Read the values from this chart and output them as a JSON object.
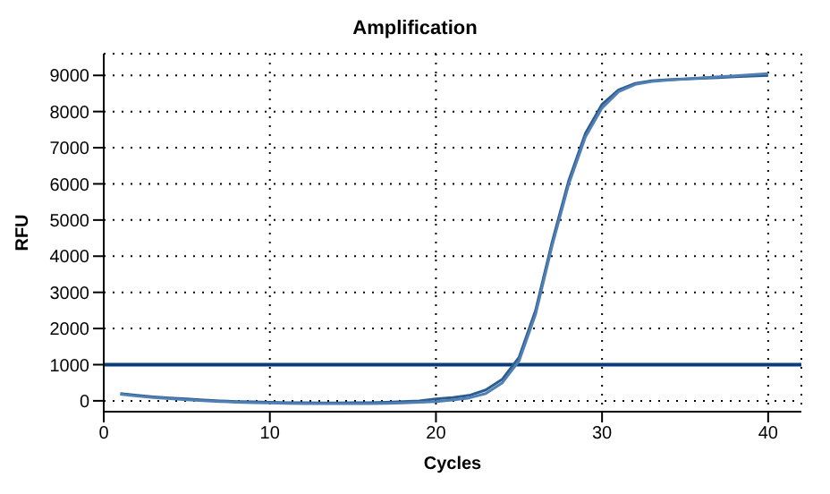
{
  "chart_data": {
    "type": "line",
    "title": "Amplification",
    "xlabel": "Cycles",
    "ylabel": "RFU",
    "x": [
      1,
      2,
      3,
      4,
      5,
      6,
      7,
      8,
      9,
      10,
      11,
      12,
      13,
      14,
      15,
      16,
      17,
      18,
      19,
      20,
      21,
      22,
      23,
      24,
      25,
      26,
      27,
      28,
      29,
      30,
      31,
      32,
      33,
      34,
      35,
      36,
      37,
      38,
      39,
      40
    ],
    "series": [
      {
        "color": "#2b5c8f",
        "values": [
          200,
          150,
          110,
          80,
          50,
          20,
          0,
          -20,
          -30,
          -40,
          -50,
          -50,
          -60,
          -60,
          -50,
          -50,
          -40,
          -20,
          0,
          50,
          90,
          150,
          300,
          600,
          1200,
          2500,
          4400,
          6100,
          7400,
          8200,
          8600,
          8780,
          8850,
          8880,
          8900,
          8920,
          8940,
          8960,
          8980,
          9000
        ]
      },
      {
        "color": "#4f7fb3",
        "values": [
          180,
          130,
          90,
          60,
          30,
          0,
          -20,
          -40,
          -50,
          -60,
          -70,
          -80,
          -80,
          -80,
          -80,
          -80,
          -70,
          -60,
          -40,
          -20,
          20,
          80,
          200,
          500,
          1100,
          2400,
          4300,
          6000,
          7300,
          8100,
          8550,
          8750,
          8830,
          8870,
          8900,
          8930,
          8960,
          8990,
          9020,
          9050
        ]
      }
    ],
    "xlim": [
      0,
      42
    ],
    "xticks": [
      0,
      10,
      20,
      30,
      40
    ],
    "ylim": [
      -300,
      9600
    ],
    "yticks": [
      0,
      1000,
      2000,
      3000,
      4000,
      5000,
      6000,
      7000,
      8000,
      9000
    ],
    "ref_lines": [
      {
        "axis": "y",
        "value": 1000,
        "color": "#0b3d7a"
      }
    ],
    "grid": true,
    "marker": "none",
    "line_style": "solid"
  }
}
